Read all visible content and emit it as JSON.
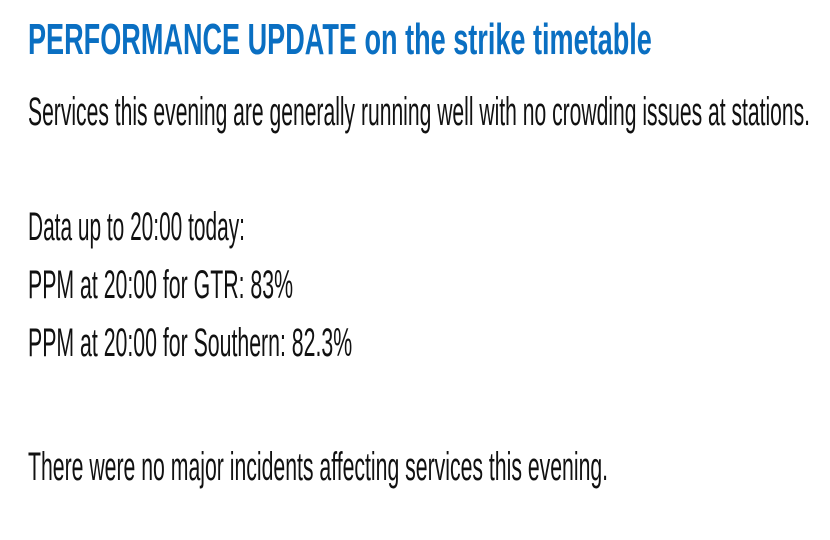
{
  "title": "PERFORMANCE UPDATE on the strike timetable",
  "intro": "Services this evening are generally running well with no crowding issues at stations.",
  "data_heading": "Data up to 20:00 today:",
  "ppm_gtr": "PPM at 20:00 for GTR: 83%",
  "ppm_southern": "PPM at 20:00 for Southern: 82.3%",
  "incidents": "There were no major incidents affecting services this evening.",
  "colors": {
    "title": "#0a6fc2",
    "text": "#111111"
  }
}
